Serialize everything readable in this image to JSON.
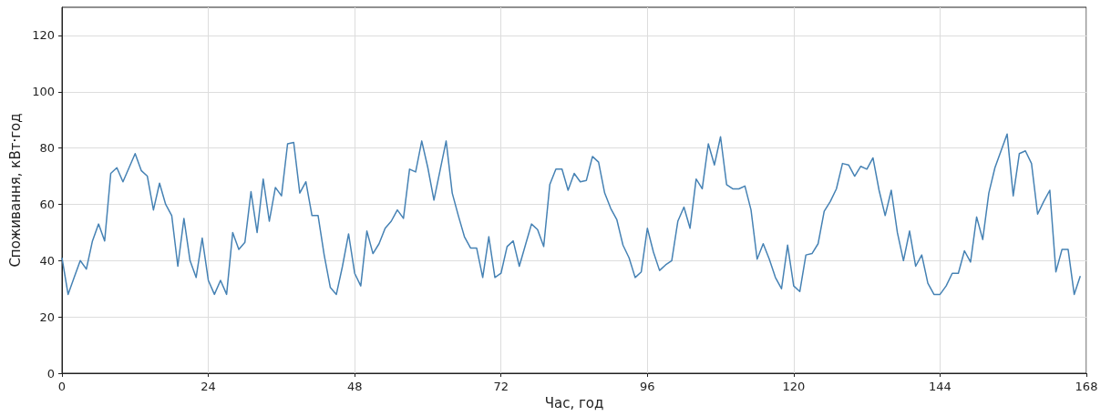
{
  "chart_data": {
    "type": "line",
    "xlabel": "Час, год",
    "ylabel": "Споживання, кВт·год",
    "x": [
      0,
      1,
      2,
      3,
      4,
      5,
      6,
      7,
      8,
      9,
      10,
      11,
      12,
      13,
      14,
      15,
      16,
      17,
      18,
      19,
      20,
      21,
      22,
      23,
      24,
      25,
      26,
      27,
      28,
      29,
      30,
      31,
      32,
      33,
      34,
      35,
      36,
      37,
      38,
      39,
      40,
      41,
      42,
      43,
      44,
      45,
      46,
      47,
      48,
      49,
      50,
      51,
      52,
      53,
      54,
      55,
      56,
      57,
      58,
      59,
      60,
      61,
      62,
      63,
      64,
      65,
      66,
      67,
      68,
      69,
      70,
      71,
      72,
      73,
      74,
      75,
      76,
      77,
      78,
      79,
      80,
      81,
      82,
      83,
      84,
      85,
      86,
      87,
      88,
      89,
      90,
      91,
      92,
      93,
      94,
      95,
      96,
      97,
      98,
      99,
      100,
      101,
      102,
      103,
      104,
      105,
      106,
      107,
      108,
      109,
      110,
      111,
      112,
      113,
      114,
      115,
      116,
      117,
      118,
      119,
      120,
      121,
      122,
      123,
      124,
      125,
      126,
      127,
      128,
      129,
      130,
      131,
      132,
      133,
      134,
      135,
      136,
      137,
      138,
      139,
      140,
      141,
      142,
      143,
      144,
      145,
      146,
      147,
      148,
      149,
      150,
      151,
      152,
      153,
      154,
      155,
      156,
      157,
      158,
      159,
      160,
      161,
      162,
      163,
      164,
      165,
      166,
      167
    ],
    "series": [
      {
        "color": "#4682b4",
        "values": [
          41,
          28,
          34,
          40,
          37,
          47,
          53,
          47,
          71,
          73,
          68,
          73,
          78,
          72,
          70,
          58,
          67.5,
          60,
          56,
          38,
          55,
          40,
          34,
          48,
          33,
          28,
          33,
          28,
          50,
          44,
          46.5,
          64.5,
          50,
          69,
          54,
          66,
          63,
          81.5,
          82,
          64,
          68,
          56,
          56,
          42,
          30.5,
          28,
          38,
          49.5,
          35.5,
          31,
          50.5,
          42.5,
          46,
          51.5,
          54,
          58,
          55,
          72.5,
          71.5,
          82.5,
          73,
          61.5,
          72,
          82.5,
          64,
          56,
          48.5,
          44.5,
          44.5,
          34,
          48.5,
          34,
          35.5,
          45,
          47,
          38,
          45.5,
          53,
          51,
          45,
          67,
          72.5,
          72.5,
          65,
          71,
          68,
          68.5,
          77,
          75,
          64,
          58.5,
          54.5,
          45.5,
          41,
          34,
          36,
          51.5,
          43,
          36.5,
          38.5,
          40,
          54,
          59,
          51.5,
          69,
          65.5,
          81.5,
          74,
          84,
          67,
          65.5,
          65.5,
          66.5,
          58,
          40.5,
          46,
          40.5,
          34,
          30,
          45.5,
          31,
          29,
          42,
          42.5,
          46,
          57.5,
          61,
          65.5,
          74.5,
          74,
          70,
          73.5,
          72.5,
          76.5,
          65,
          56,
          65,
          50,
          40,
          50.5,
          38,
          42,
          32,
          28,
          28,
          31,
          35.5,
          35.5,
          43.5,
          39.5,
          55.5,
          47.5,
          64,
          73,
          79,
          85,
          63,
          78,
          79,
          74.5,
          56.5,
          61,
          65,
          36,
          44,
          44,
          28,
          34.5
        ]
      }
    ],
    "xlim": [
      0,
      168
    ],
    "xticks": [
      0,
      24,
      48,
      72,
      96,
      120,
      144,
      168
    ],
    "ylim": [
      0,
      130
    ],
    "yticks": [
      0,
      20,
      40,
      60,
      80,
      100,
      120
    ],
    "grid": true,
    "marker": "none",
    "line_style": "solid"
  }
}
